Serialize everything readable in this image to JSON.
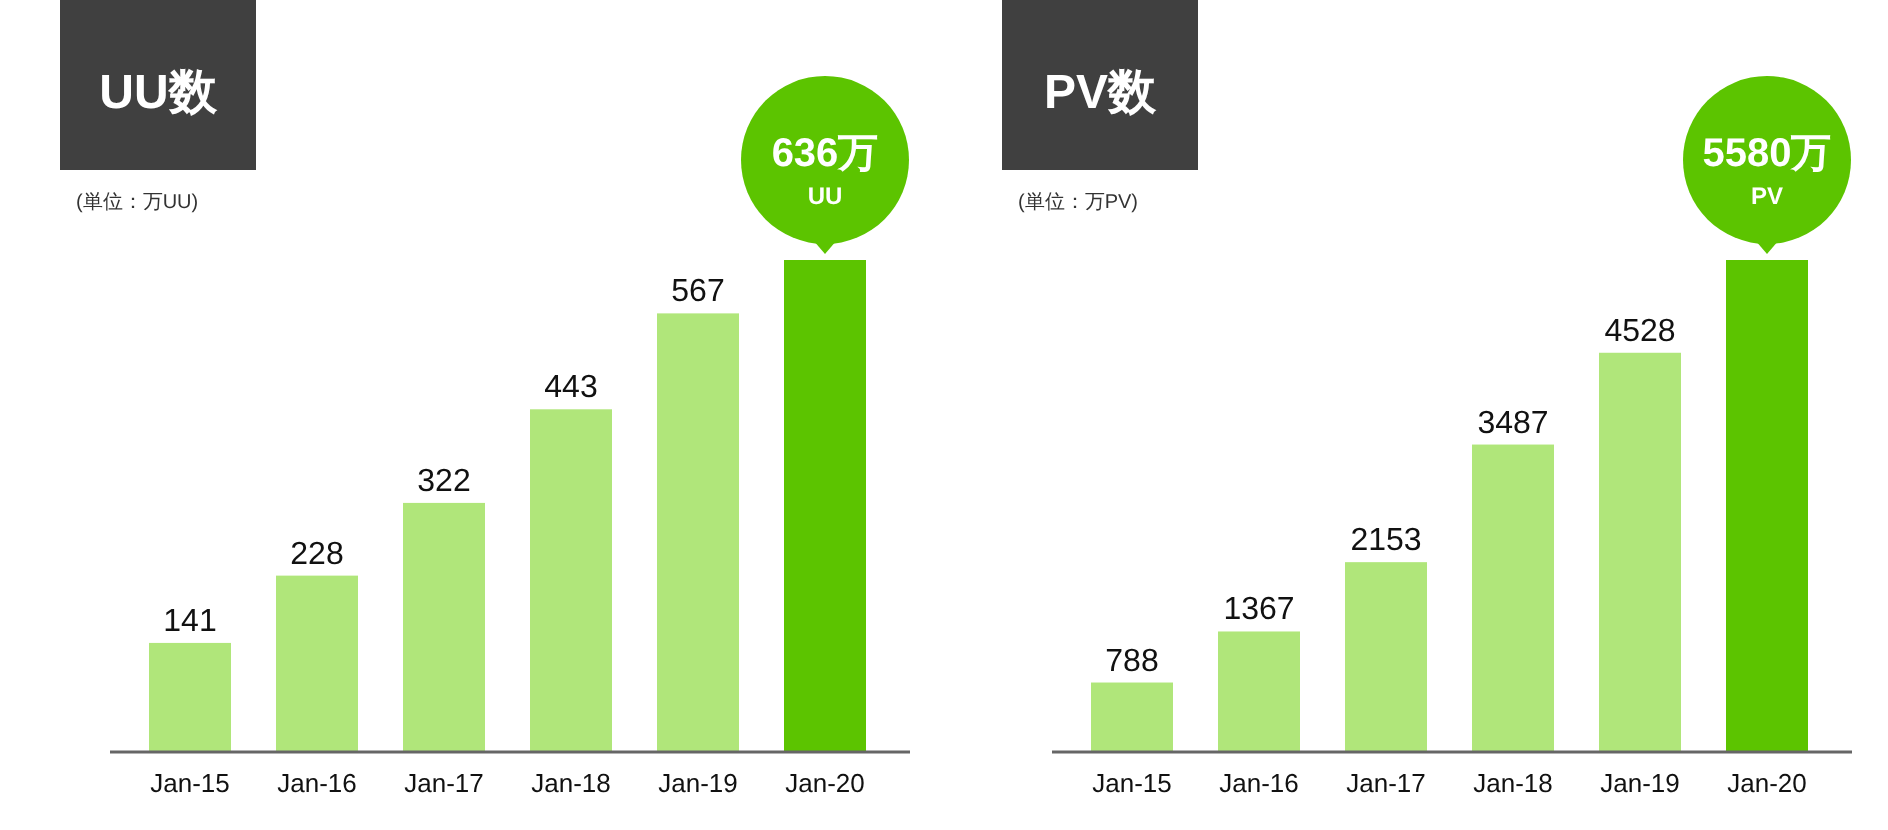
{
  "chart_data": [
    {
      "type": "bar",
      "title": "UU数",
      "subtitle": "(単位：万UU)",
      "categories": [
        "Jan-15",
        "Jan-16",
        "Jan-17",
        "Jan-18",
        "Jan-19",
        "Jan-20"
      ],
      "values": [
        141,
        228,
        322,
        443,
        567,
        636
      ],
      "colors": [
        "#b0e67a",
        "#b0e67a",
        "#b0e67a",
        "#b0e67a",
        "#b0e67a",
        "#5cc400"
      ],
      "value_labels": [
        "141",
        "228",
        "322",
        "443",
        "567",
        "636万 UU"
      ]
    },
    {
      "type": "bar",
      "title": "PV数",
      "subtitle": "(単位：万PV)",
      "categories": [
        "Jan-15",
        "Jan-16",
        "Jan-17",
        "Jan-18",
        "Jan-19",
        "Jan-20"
      ],
      "values": [
        788,
        1367,
        2153,
        3487,
        4528,
        5580
      ],
      "colors": [
        "#b0e67a",
        "#b0e67a",
        "#b0e67a",
        "#b0e67a",
        "#b0e67a",
        "#5cc400"
      ],
      "value_labels": [
        "788",
        "1367",
        "2153",
        "3487",
        "4528",
        "5580万 PV"
      ]
    }
  ]
}
